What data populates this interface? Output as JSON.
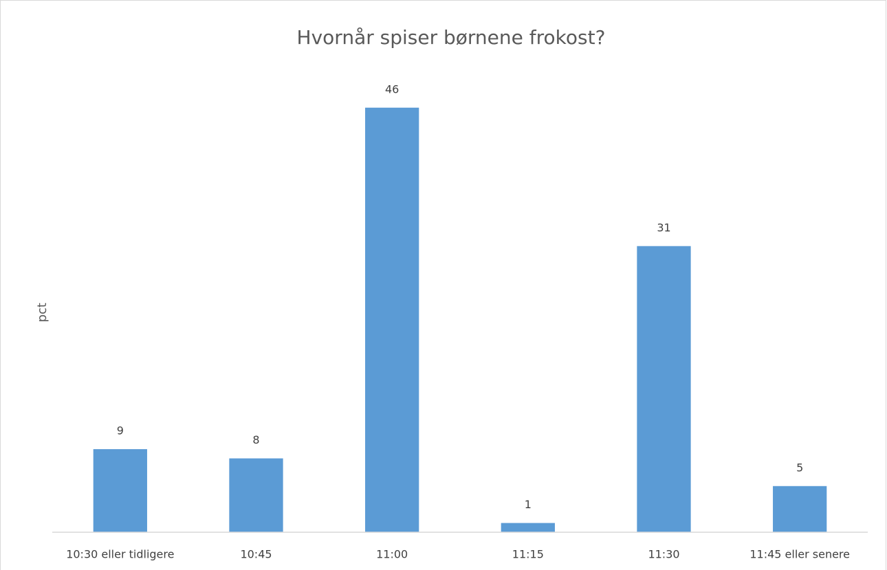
{
  "chart_data": {
    "type": "bar",
    "title": "Hvornår spiser børnene frokost?",
    "y_label": "pct",
    "categories": [
      "10:30 eller tidligere",
      "10:45",
      "11:00",
      "11:15",
      "11:30",
      "11:45 eller senere"
    ],
    "values": [
      9,
      8,
      46,
      1,
      31,
      5
    ],
    "color": "#5b9bd5",
    "ylim": [
      0,
      50
    ],
    "data_labels": true
  }
}
